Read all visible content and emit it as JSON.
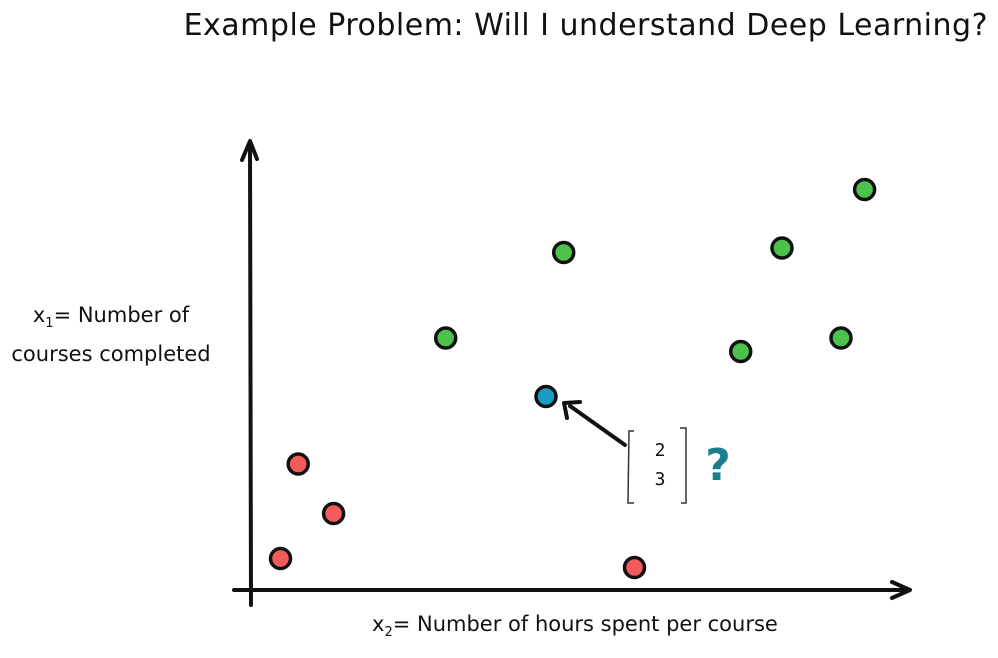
{
  "title": "Example Problem: Will I understand Deep Learning?",
  "y_axis": {
    "var": "x",
    "sub": "1",
    "rest": "= Number of",
    "line2": "courses completed"
  },
  "x_axis": {
    "var": "x",
    "sub": "2",
    "rest": "= Number of hours spent per course"
  },
  "colors": {
    "red": "#f45b5b",
    "green": "#4cc24a",
    "query": "#1c9ac2",
    "question": "#1a7f8f",
    "stroke": "#111111"
  },
  "query": {
    "vector": [
      "2",
      "3"
    ],
    "mark": "?"
  },
  "chart_data": {
    "type": "scatter",
    "xlabel": "x2 = Number of hours spent per course",
    "ylabel": "x1 = Number of courses completed",
    "grid": false,
    "series": [
      {
        "label": "red",
        "color": "#f45b5b",
        "points": [
          [
            0.8,
            2.8
          ],
          [
            1.4,
            1.7
          ],
          [
            0.5,
            0.7
          ],
          [
            6.5,
            0.5
          ]
        ]
      },
      {
        "label": "green",
        "color": "#4cc24a",
        "points": [
          [
            3.3,
            5.6
          ],
          [
            5.3,
            7.5
          ],
          [
            8.3,
            5.3
          ],
          [
            9.0,
            7.6
          ],
          [
            10.0,
            5.6
          ],
          [
            10.4,
            8.9
          ]
        ]
      },
      {
        "label": "query",
        "color": "#1c9ac2",
        "points": [
          [
            5.0,
            4.3
          ]
        ]
      }
    ]
  }
}
